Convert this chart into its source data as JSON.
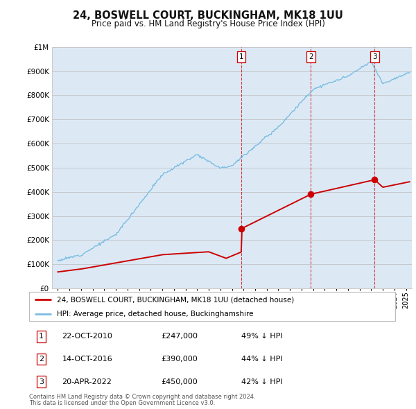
{
  "title": "24, BOSWELL COURT, BUCKINGHAM, MK18 1UU",
  "subtitle": "Price paid vs. HM Land Registry's House Price Index (HPI)",
  "property_label": "24, BOSWELL COURT, BUCKINGHAM, MK18 1UU (detached house)",
  "hpi_label": "HPI: Average price, detached house, Buckinghamshire",
  "footnote1": "Contains HM Land Registry data © Crown copyright and database right 2024.",
  "footnote2": "This data is licensed under the Open Government Licence v3.0.",
  "transactions": [
    {
      "num": 1,
      "date": "22-OCT-2010",
      "price": 247000,
      "pct": "49% ↓ HPI",
      "year": 2010.8
    },
    {
      "num": 2,
      "date": "14-OCT-2016",
      "price": 390000,
      "pct": "44% ↓ HPI",
      "year": 2016.8
    },
    {
      "num": 3,
      "date": "20-APR-2022",
      "price": 450000,
      "pct": "42% ↓ HPI",
      "year": 2022.3
    }
  ],
  "ylim": [
    0,
    1000000
  ],
  "xlim_start": 1994.5,
  "xlim_end": 2025.5,
  "hpi_color": "#7bbde0",
  "property_color": "#cc0000",
  "dashed_color": "#cc0000",
  "bg_color": "#dce9f5",
  "grid_color": "#bbbbbb",
  "title_fontsize": 10.5,
  "subtitle_fontsize": 8.5,
  "legend_border": "#aaaaaa"
}
